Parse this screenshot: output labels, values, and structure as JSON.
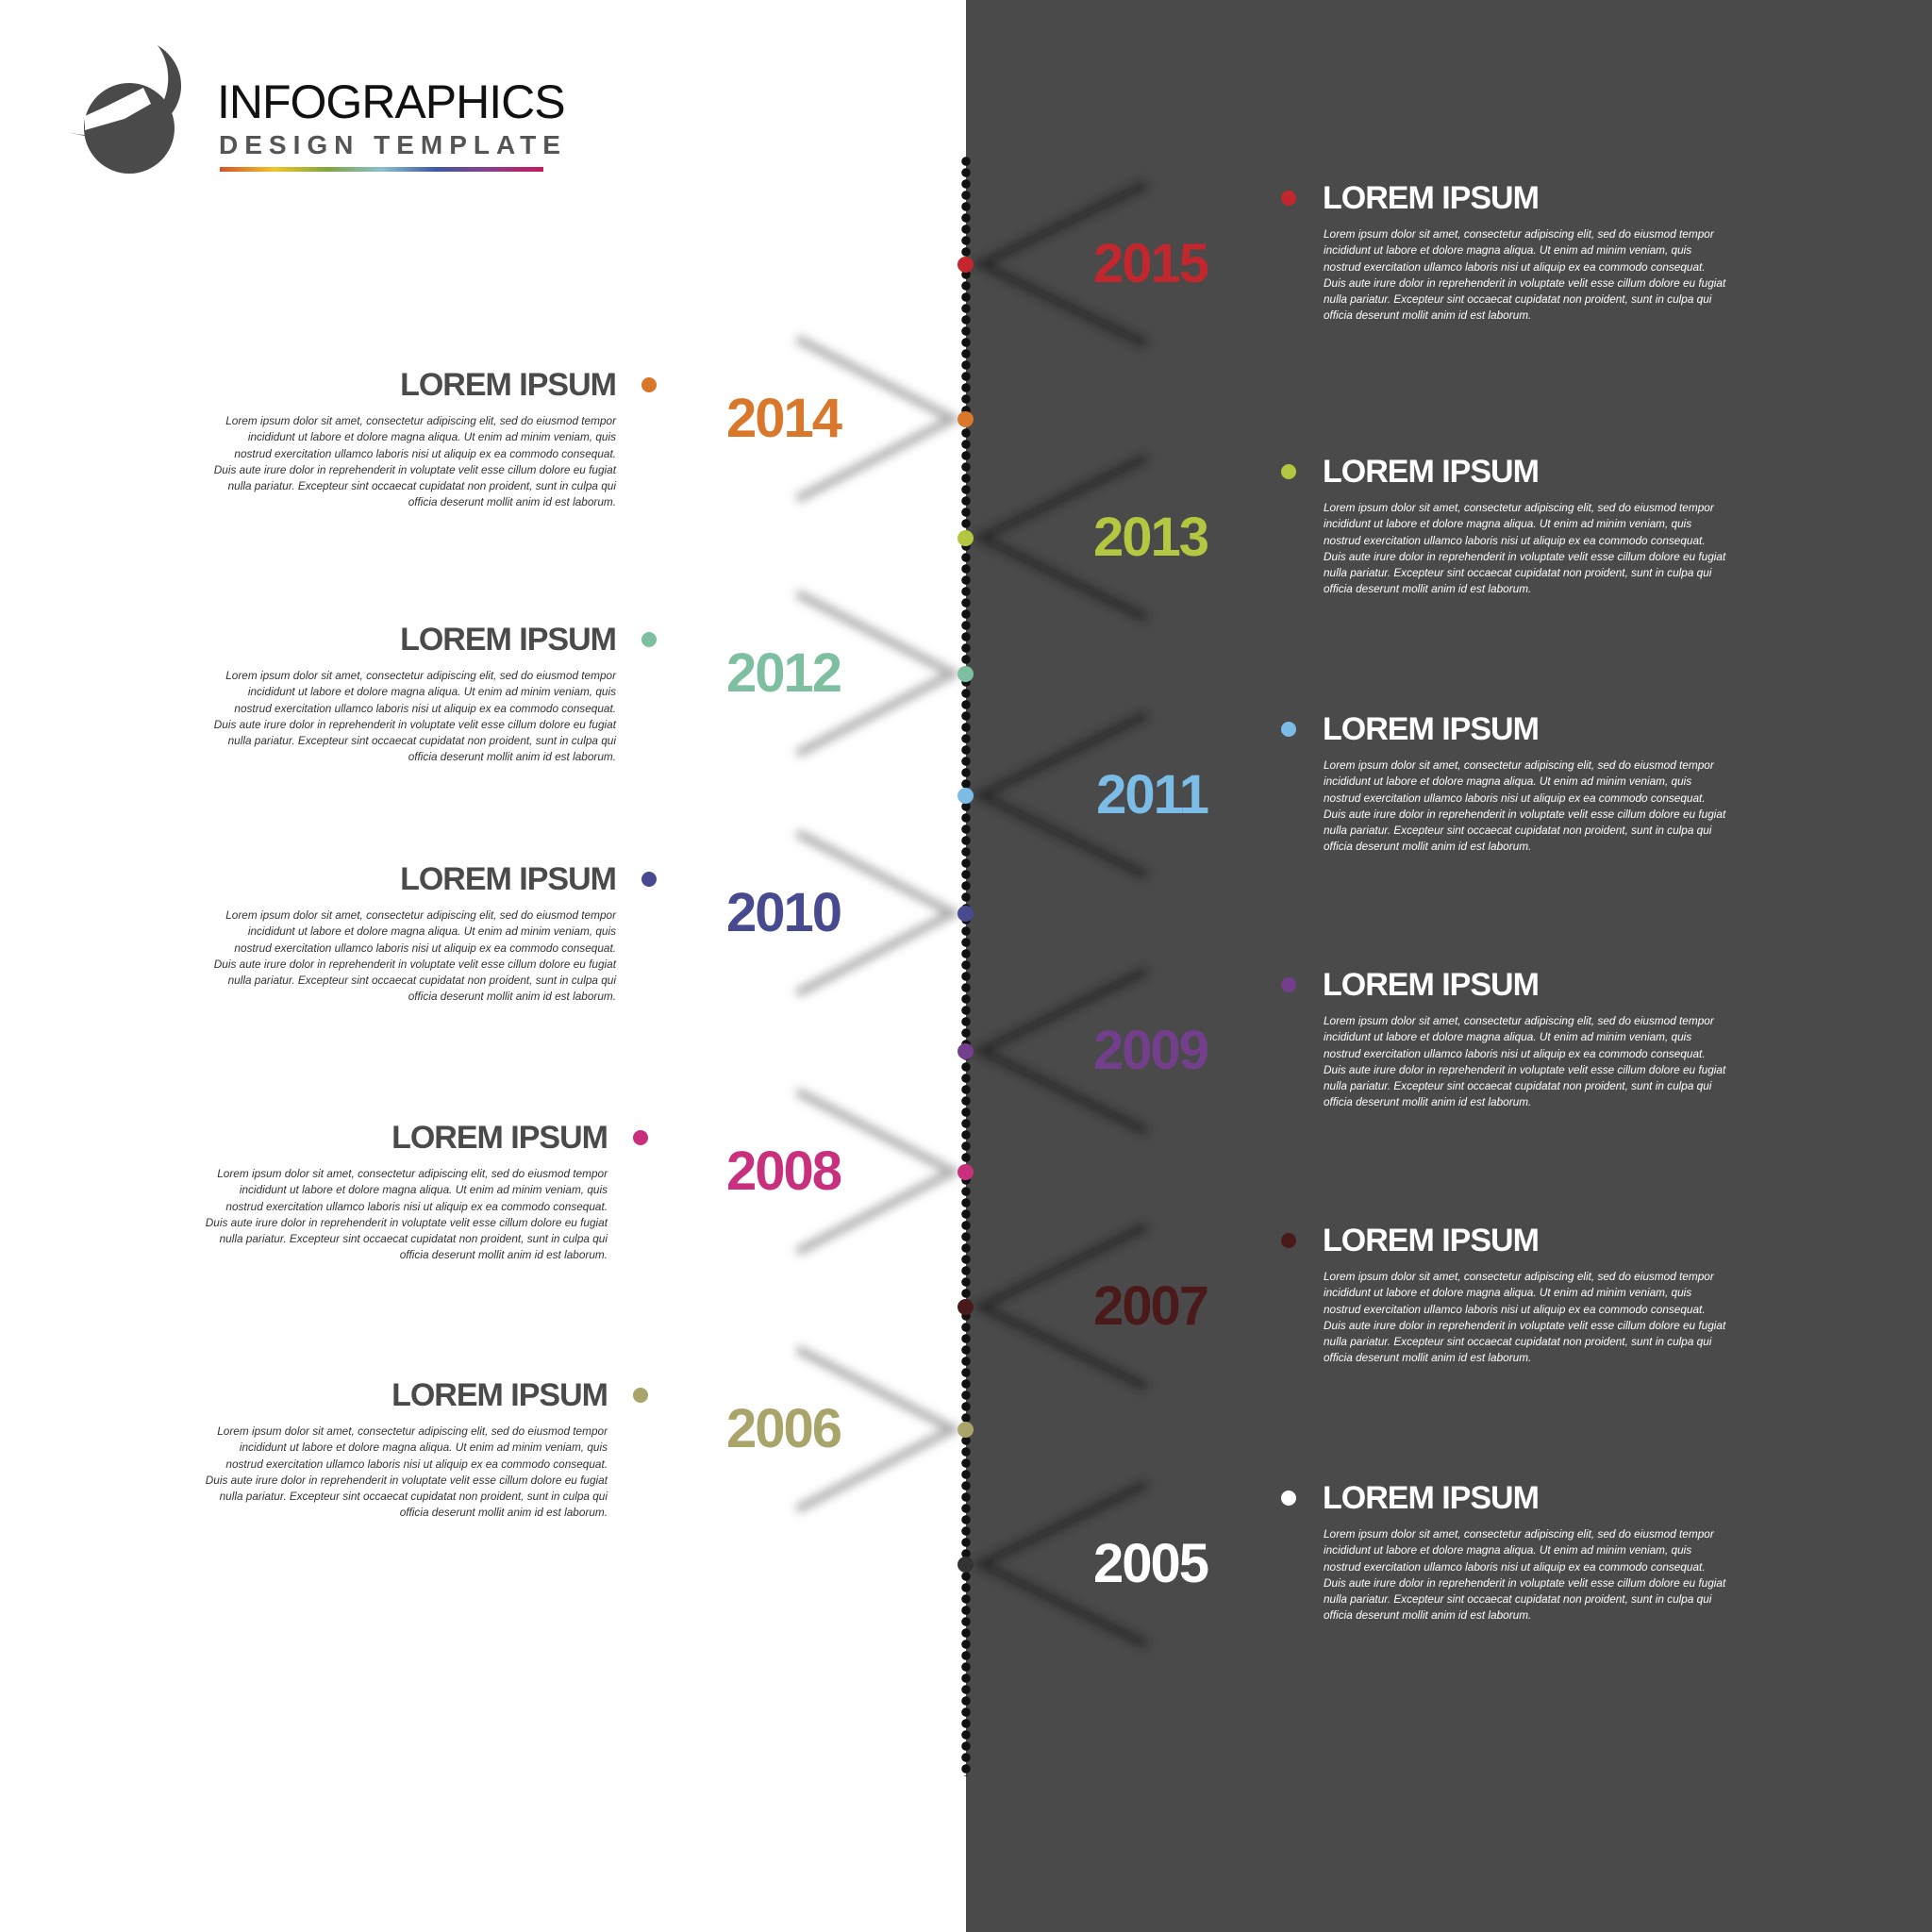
{
  "brand": {
    "line1": "INFOGRAPHICS",
    "line2": "DESIGN TEMPLATE",
    "rainbow_colors": [
      "#d2542a",
      "#f2c42a",
      "#7fa63e",
      "#8dbfcf",
      "#3f5aa3",
      "#8a3e8c",
      "#c7195e"
    ]
  },
  "timeline": [
    {
      "year": "2015",
      "side": "right",
      "title": "LOREM IPSUM",
      "color": "#c1272d"
    },
    {
      "year": "2014",
      "side": "left",
      "title": "LOREM IPSUM",
      "color": "#d9782b"
    },
    {
      "year": "2013",
      "side": "right",
      "title": "LOREM IPSUM",
      "color": "#b5c641"
    },
    {
      "year": "2012",
      "side": "left",
      "title": "LOREM IPSUM",
      "color": "#7dbfa0"
    },
    {
      "year": "2011",
      "side": "right",
      "title": "LOREM IPSUM",
      "color": "#7cbde8"
    },
    {
      "year": "2010",
      "side": "left",
      "title": "LOREM IPSUM",
      "color": "#474a8f"
    },
    {
      "year": "2009",
      "side": "right",
      "title": "LOREM IPSUM",
      "color": "#733f8c"
    },
    {
      "year": "2008",
      "side": "left",
      "title": "LOREM IPSUM",
      "color": "#c8307e"
    },
    {
      "year": "2007",
      "side": "right",
      "title": "LOREM IPSUM",
      "color": "#4a1a1a"
    },
    {
      "year": "2006",
      "side": "left",
      "title": "LOREM IPSUM",
      "color": "#a8a46a"
    },
    {
      "year": "2005",
      "side": "right",
      "title": "LOREM IPSUM",
      "color": "#ffffff"
    }
  ],
  "body_text": "Lorem ipsum dolor sit amet, consectetur adipiscing elit, sed do eiusmod tempor\nincididunt ut labore et dolore magna aliqua. Ut enim ad minim veniam, quis\nnostrud exercitation ullamco laboris nisi ut aliquip ex ea commodo consequat.\nDuis aute irure dolor in reprehenderit in voluptate velit esse cillum dolore eu fugiat\nnulla pariatur. Excepteur sint occaecat cupidatat non proident, sunt in culpa qui\nofficia deserunt mollit anim id est laborum."
}
